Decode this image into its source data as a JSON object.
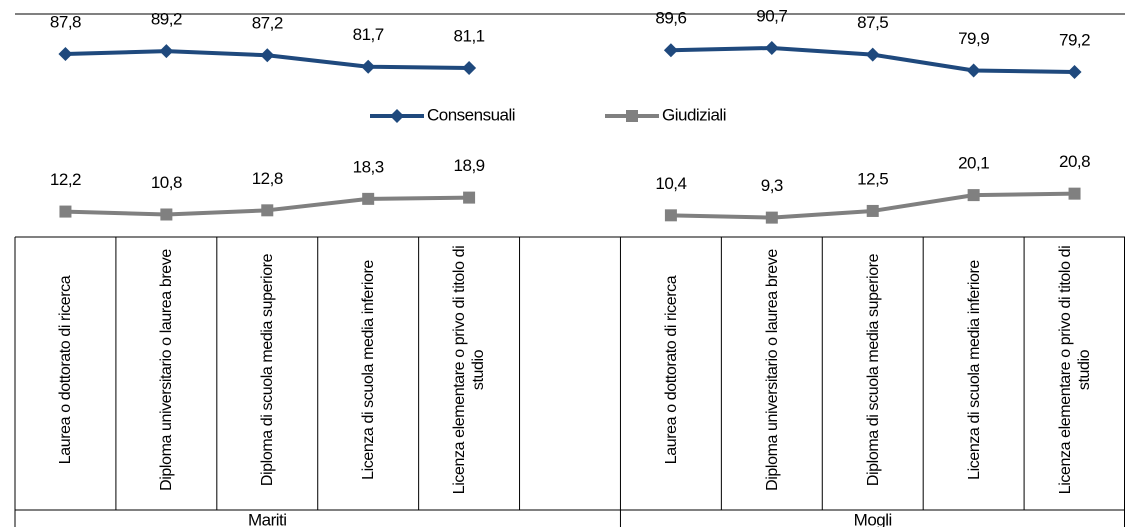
{
  "chart_data": {
    "type": "line",
    "categories": [
      "Laurea o dottorato di ricerca",
      "Diploma universitario o laurea breve",
      "Diploma di scuola media superiore",
      "Licenza di scuola media inferiore",
      "Licenza elementare o privo di titolo di studio",
      null,
      "Laurea o dottorato di ricerca",
      "Diploma universitario o laurea breve",
      "Diploma di scuola media superiore",
      "Licenza di scuola media inferiore",
      "Licenza elementare o privo di titolo di studio"
    ],
    "groups": [
      "Mariti",
      "Mogli"
    ],
    "series": [
      {
        "name": "Consensuali",
        "color": "#1f497d",
        "marker": "diamond",
        "values": [
          87.8,
          89.2,
          87.2,
          81.7,
          81.1,
          null,
          89.6,
          90.7,
          87.5,
          79.9,
          79.2
        ],
        "value_labels": [
          "87,8",
          "89,2",
          "87,2",
          "81,7",
          "81,1",
          null,
          "89,6",
          "90,7",
          "87,5",
          "79,9",
          "79,2"
        ]
      },
      {
        "name": "Giudiziali",
        "color": "#808080",
        "marker": "square",
        "values": [
          12.2,
          10.8,
          12.8,
          18.3,
          18.9,
          null,
          10.4,
          9.3,
          12.5,
          20.1,
          20.8
        ],
        "value_labels": [
          "12,2",
          "10,8",
          "12,8",
          "18,3",
          "18,9",
          null,
          "10,4",
          "9,3",
          "12,5",
          "20,1",
          "20,8"
        ]
      }
    ],
    "ylim": [
      0,
      107
    ],
    "legend": "center",
    "grid": false
  }
}
